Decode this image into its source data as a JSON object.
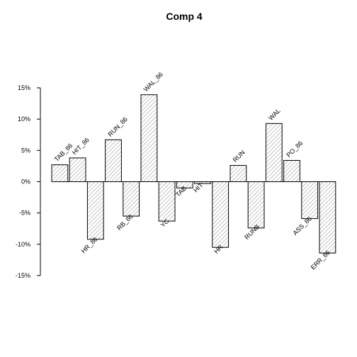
{
  "chart_data": {
    "type": "bar",
    "title": "Comp 4",
    "xlabel": "",
    "ylabel": "",
    "ylim": [
      -15,
      15
    ],
    "yticks": [
      -15,
      -10,
      -5,
      0,
      5,
      10,
      15
    ],
    "ytick_labels": [
      "-15%",
      "-10%",
      "-5%",
      "0%",
      "5%",
      "10%",
      "15%"
    ],
    "grid": false,
    "legend": "none",
    "fill_pattern": "diagonal-hatch",
    "colors": {
      "bar_fill": "#ffffff",
      "bar_stroke": "#000000",
      "hatch": "#555555"
    },
    "categories": [
      "TAB_86",
      "HIT_86",
      "HR_86",
      "RUN_86",
      "RB_86",
      "WAL_86",
      "YC",
      "TAB",
      "HIT",
      "HR",
      "RUN",
      "RUNB",
      "WAL",
      "PO_86",
      "ASS_86",
      "ERR_86"
    ],
    "values": [
      2.7,
      3.8,
      -9.2,
      6.7,
      -5.5,
      13.9,
      -6.3,
      -1.0,
      -0.3,
      -10.5,
      2.6,
      -7.4,
      9.3,
      3.4,
      -5.9,
      -11.4
    ]
  }
}
